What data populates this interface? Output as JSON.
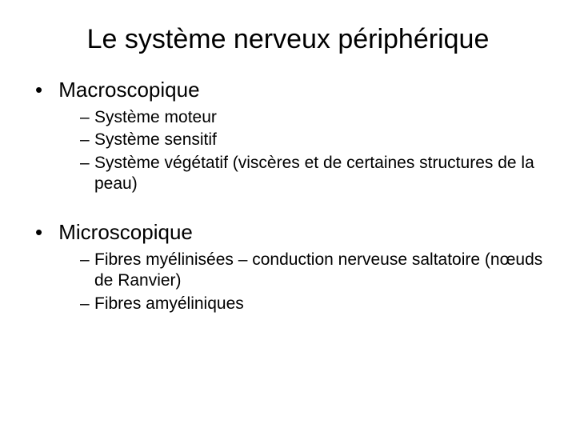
{
  "title": "Le système nerveux périphérique",
  "sections": [
    {
      "heading": "Macroscopique",
      "items": [
        "Système moteur",
        "Système sensitif",
        "Système végétatif (viscères et de certaines structures de la peau)"
      ]
    },
    {
      "heading": "Microscopique",
      "items": [
        "Fibres myélinisées – conduction nerveuse saltatoire (nœuds de Ranvier)",
        "Fibres amyéliniques"
      ]
    }
  ],
  "style": {
    "background_color": "#ffffff",
    "text_color": "#000000",
    "title_fontsize": 34,
    "level1_fontsize": 26,
    "level2_fontsize": 21,
    "font_family": "Arial"
  }
}
